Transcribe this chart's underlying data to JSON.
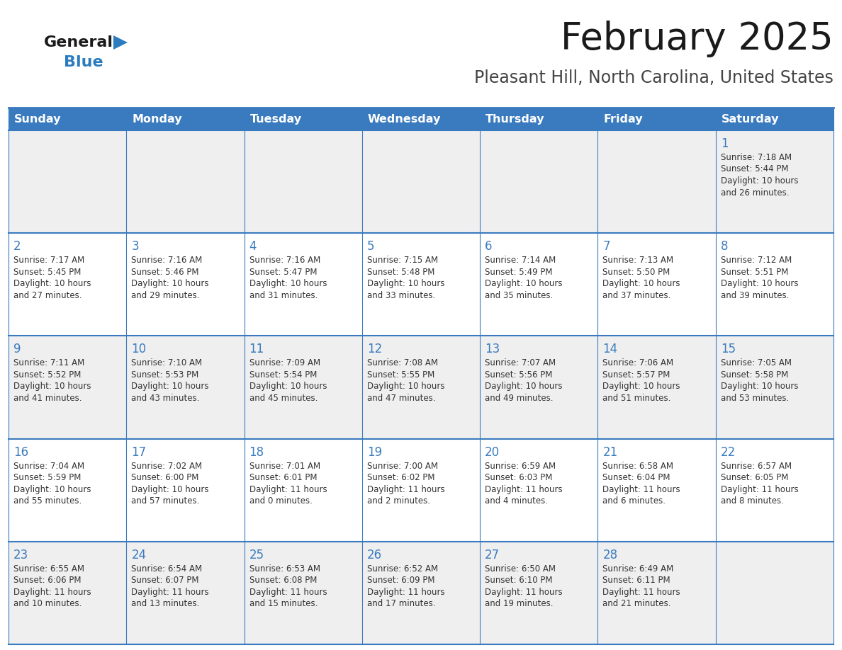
{
  "title": "February 2025",
  "subtitle": "Pleasant Hill, North Carolina, United States",
  "days_of_week": [
    "Sunday",
    "Monday",
    "Tuesday",
    "Wednesday",
    "Thursday",
    "Friday",
    "Saturday"
  ],
  "header_bg": "#3a7bbf",
  "header_text": "#ffffff",
  "row_bg_light": "#efefef",
  "row_bg_white": "#ffffff",
  "border_color": "#3a7bbf",
  "day_num_color": "#3a7bbf",
  "cell_text_color": "#333333",
  "title_color": "#1a1a1a",
  "subtitle_color": "#444444",
  "fig_width": 11.88,
  "fig_height": 9.18,
  "dpi": 100,
  "weeks": [
    {
      "days": [
        {
          "date": "",
          "sunrise": "",
          "sunset": "",
          "daylight": ""
        },
        {
          "date": "",
          "sunrise": "",
          "sunset": "",
          "daylight": ""
        },
        {
          "date": "",
          "sunrise": "",
          "sunset": "",
          "daylight": ""
        },
        {
          "date": "",
          "sunrise": "",
          "sunset": "",
          "daylight": ""
        },
        {
          "date": "",
          "sunrise": "",
          "sunset": "",
          "daylight": ""
        },
        {
          "date": "",
          "sunrise": "",
          "sunset": "",
          "daylight": ""
        },
        {
          "date": "1",
          "sunrise": "7:18 AM",
          "sunset": "5:44 PM",
          "daylight": "10 hours\nand 26 minutes."
        }
      ]
    },
    {
      "days": [
        {
          "date": "2",
          "sunrise": "7:17 AM",
          "sunset": "5:45 PM",
          "daylight": "10 hours\nand 27 minutes."
        },
        {
          "date": "3",
          "sunrise": "7:16 AM",
          "sunset": "5:46 PM",
          "daylight": "10 hours\nand 29 minutes."
        },
        {
          "date": "4",
          "sunrise": "7:16 AM",
          "sunset": "5:47 PM",
          "daylight": "10 hours\nand 31 minutes."
        },
        {
          "date": "5",
          "sunrise": "7:15 AM",
          "sunset": "5:48 PM",
          "daylight": "10 hours\nand 33 minutes."
        },
        {
          "date": "6",
          "sunrise": "7:14 AM",
          "sunset": "5:49 PM",
          "daylight": "10 hours\nand 35 minutes."
        },
        {
          "date": "7",
          "sunrise": "7:13 AM",
          "sunset": "5:50 PM",
          "daylight": "10 hours\nand 37 minutes."
        },
        {
          "date": "8",
          "sunrise": "7:12 AM",
          "sunset": "5:51 PM",
          "daylight": "10 hours\nand 39 minutes."
        }
      ]
    },
    {
      "days": [
        {
          "date": "9",
          "sunrise": "7:11 AM",
          "sunset": "5:52 PM",
          "daylight": "10 hours\nand 41 minutes."
        },
        {
          "date": "10",
          "sunrise": "7:10 AM",
          "sunset": "5:53 PM",
          "daylight": "10 hours\nand 43 minutes."
        },
        {
          "date": "11",
          "sunrise": "7:09 AM",
          "sunset": "5:54 PM",
          "daylight": "10 hours\nand 45 minutes."
        },
        {
          "date": "12",
          "sunrise": "7:08 AM",
          "sunset": "5:55 PM",
          "daylight": "10 hours\nand 47 minutes."
        },
        {
          "date": "13",
          "sunrise": "7:07 AM",
          "sunset": "5:56 PM",
          "daylight": "10 hours\nand 49 minutes."
        },
        {
          "date": "14",
          "sunrise": "7:06 AM",
          "sunset": "5:57 PM",
          "daylight": "10 hours\nand 51 minutes."
        },
        {
          "date": "15",
          "sunrise": "7:05 AM",
          "sunset": "5:58 PM",
          "daylight": "10 hours\nand 53 minutes."
        }
      ]
    },
    {
      "days": [
        {
          "date": "16",
          "sunrise": "7:04 AM",
          "sunset": "5:59 PM",
          "daylight": "10 hours\nand 55 minutes."
        },
        {
          "date": "17",
          "sunrise": "7:02 AM",
          "sunset": "6:00 PM",
          "daylight": "10 hours\nand 57 minutes."
        },
        {
          "date": "18",
          "sunrise": "7:01 AM",
          "sunset": "6:01 PM",
          "daylight": "11 hours\nand 0 minutes."
        },
        {
          "date": "19",
          "sunrise": "7:00 AM",
          "sunset": "6:02 PM",
          "daylight": "11 hours\nand 2 minutes."
        },
        {
          "date": "20",
          "sunrise": "6:59 AM",
          "sunset": "6:03 PM",
          "daylight": "11 hours\nand 4 minutes."
        },
        {
          "date": "21",
          "sunrise": "6:58 AM",
          "sunset": "6:04 PM",
          "daylight": "11 hours\nand 6 minutes."
        },
        {
          "date": "22",
          "sunrise": "6:57 AM",
          "sunset": "6:05 PM",
          "daylight": "11 hours\nand 8 minutes."
        }
      ]
    },
    {
      "days": [
        {
          "date": "23",
          "sunrise": "6:55 AM",
          "sunset": "6:06 PM",
          "daylight": "11 hours\nand 10 minutes."
        },
        {
          "date": "24",
          "sunrise": "6:54 AM",
          "sunset": "6:07 PM",
          "daylight": "11 hours\nand 13 minutes."
        },
        {
          "date": "25",
          "sunrise": "6:53 AM",
          "sunset": "6:08 PM",
          "daylight": "11 hours\nand 15 minutes."
        },
        {
          "date": "26",
          "sunrise": "6:52 AM",
          "sunset": "6:09 PM",
          "daylight": "11 hours\nand 17 minutes."
        },
        {
          "date": "27",
          "sunrise": "6:50 AM",
          "sunset": "6:10 PM",
          "daylight": "11 hours\nand 19 minutes."
        },
        {
          "date": "28",
          "sunrise": "6:49 AM",
          "sunset": "6:11 PM",
          "daylight": "11 hours\nand 21 minutes."
        },
        {
          "date": "",
          "sunrise": "",
          "sunset": "",
          "daylight": ""
        }
      ]
    }
  ]
}
